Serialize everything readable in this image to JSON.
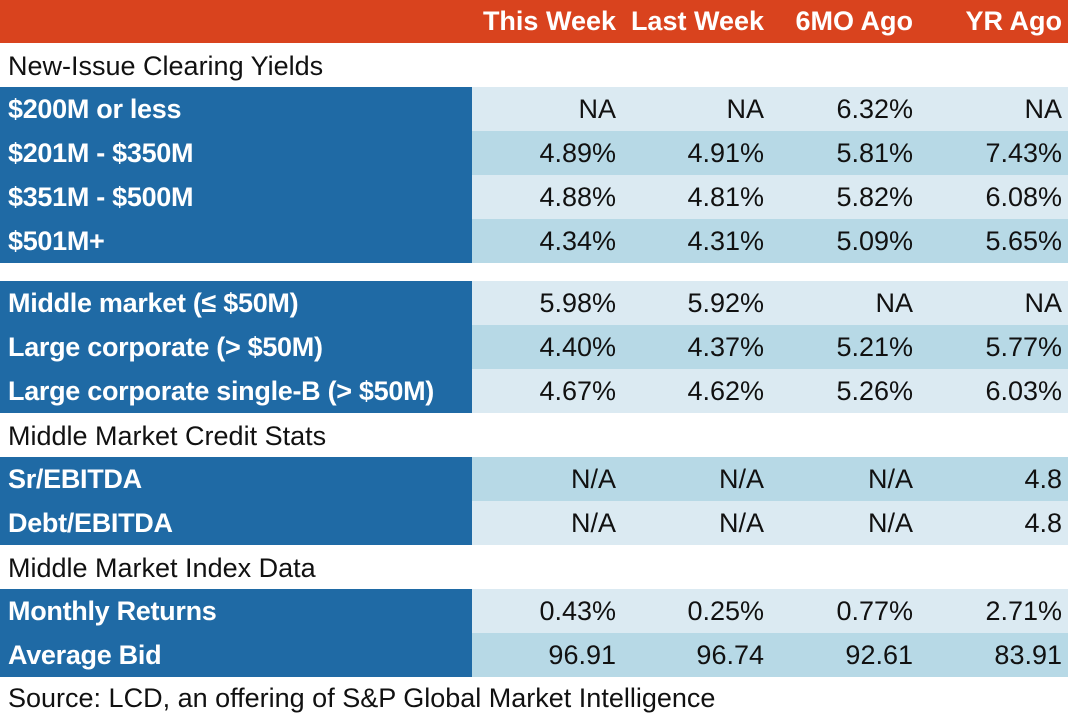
{
  "columns": [
    "This Week",
    "Last Week",
    "6MO Ago",
    "YR Ago"
  ],
  "sections": {
    "clearing_yields": "New-Issue Clearing Yields",
    "credit_stats": "Middle Market Credit Stats",
    "index_data": "Middle Market Index Data"
  },
  "group1": [
    {
      "label": "$200M or less",
      "values": [
        "NA",
        "NA",
        "6.32%",
        "NA"
      ]
    },
    {
      "label": "$201M - $350M",
      "values": [
        "4.89%",
        "4.91%",
        "5.81%",
        "7.43%"
      ]
    },
    {
      "label": "$351M - $500M",
      "values": [
        "4.88%",
        "4.81%",
        "5.82%",
        "6.08%"
      ]
    },
    {
      "label": "$501M+",
      "values": [
        "4.34%",
        "4.31%",
        "5.09%",
        "5.65%"
      ]
    }
  ],
  "group2": [
    {
      "label": "Middle market (≤ $50M)",
      "values": [
        "5.98%",
        "5.92%",
        "NA",
        "NA"
      ]
    },
    {
      "label": "Large corporate (> $50M)",
      "values": [
        "4.40%",
        "4.37%",
        "5.21%",
        "5.77%"
      ]
    },
    {
      "label": "Large corporate single-B (> $50M)",
      "values": [
        "4.67%",
        "4.62%",
        "5.26%",
        "6.03%"
      ]
    }
  ],
  "group3": [
    {
      "label": "Sr/EBITDA",
      "values": [
        "N/A",
        "N/A",
        "N/A",
        "4.8"
      ]
    },
    {
      "label": "Debt/EBITDA",
      "values": [
        "N/A",
        "N/A",
        "N/A",
        "4.8"
      ]
    }
  ],
  "group4": [
    {
      "label": "Monthly Returns",
      "values": [
        "0.43%",
        "0.25%",
        "0.77%",
        "2.71%"
      ]
    },
    {
      "label": "Average Bid",
      "values": [
        "96.91",
        "96.74",
        "92.61",
        "83.91"
      ]
    }
  ],
  "source": "Source: LCD, an offering of S&P Global Market Intelligence",
  "colors": {
    "header": "#d9431e",
    "label_bg": "#1f6aa5",
    "row_light": "#dbeaf2",
    "row_mid": "#b7d9e6"
  }
}
